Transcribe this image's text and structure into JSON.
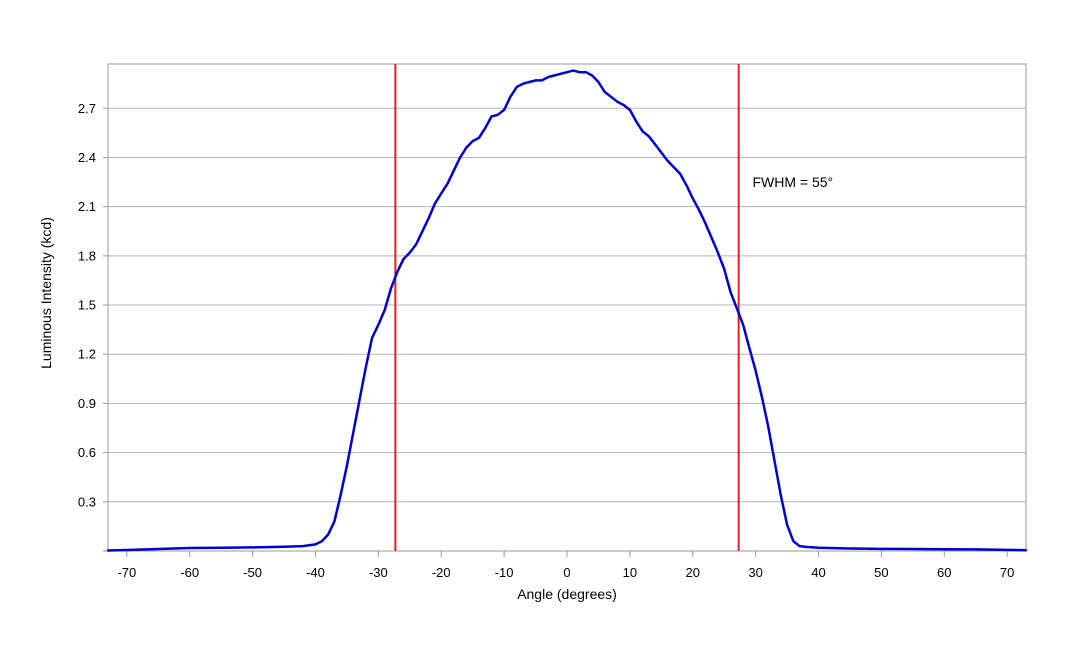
{
  "chart_data": {
    "type": "line",
    "title": "",
    "xlabel": "Angle (degrees)",
    "ylabel": "Luminous Intensity (kcd)",
    "xlim": [
      -73,
      73
    ],
    "ylim": [
      0,
      2.97
    ],
    "x_ticks": [
      -70,
      -60,
      -50,
      -40,
      -30,
      -20,
      -10,
      0,
      10,
      20,
      30,
      40,
      50,
      60,
      70
    ],
    "x_tick_labels": [
      "-70",
      "-60",
      "-50",
      "-40",
      "-30",
      "-20",
      "-10",
      "0",
      "10",
      "20",
      "30",
      "40",
      "50",
      "60",
      "70"
    ],
    "y_ticks": [
      0.3,
      0.6,
      0.9,
      1.2,
      1.5,
      1.8,
      2.1,
      2.4,
      2.7
    ],
    "y_tick_labels": [
      "0.3",
      "0.6",
      "0.9",
      "1.2",
      "1.5",
      "1.8",
      "2.1",
      "2.4",
      "2.7"
    ],
    "grid": "horizontal",
    "series": [
      {
        "color": "#0000cc",
        "x": [
          -73,
          -70,
          -65,
          -60,
          -55,
          -50,
          -45,
          -42,
          -40,
          -39,
          -38,
          -37,
          -36,
          -35,
          -34,
          -33,
          -32,
          -31,
          -30,
          -29,
          -28,
          -27,
          -26,
          -25,
          -24,
          -23,
          -22,
          -21,
          -20,
          -19,
          -18,
          -17,
          -16,
          -15,
          -14,
          -13,
          -12,
          -11,
          -10,
          -9,
          -8,
          -7,
          -6,
          -5,
          -4,
          -3,
          -2,
          -1,
          0,
          1,
          2,
          3,
          4,
          5,
          6,
          7,
          8,
          9,
          10,
          11,
          12,
          13,
          14,
          15,
          16,
          17,
          18,
          19,
          20,
          21,
          22,
          23,
          24,
          25,
          26,
          27,
          28,
          29,
          30,
          31,
          32,
          33,
          34,
          35,
          36,
          37,
          38,
          40,
          45,
          50,
          55,
          60,
          65,
          70,
          73
        ],
        "y": [
          0.003,
          0.006,
          0.012,
          0.018,
          0.02,
          0.022,
          0.026,
          0.03,
          0.04,
          0.06,
          0.1,
          0.18,
          0.34,
          0.52,
          0.72,
          0.92,
          1.12,
          1.3,
          1.38,
          1.47,
          1.6,
          1.7,
          1.78,
          1.82,
          1.87,
          1.95,
          2.03,
          2.12,
          2.18,
          2.24,
          2.32,
          2.4,
          2.46,
          2.5,
          2.52,
          2.58,
          2.65,
          2.66,
          2.69,
          2.77,
          2.83,
          2.85,
          2.86,
          2.87,
          2.87,
          2.89,
          2.9,
          2.91,
          2.92,
          2.93,
          2.92,
          2.92,
          2.9,
          2.86,
          2.8,
          2.77,
          2.74,
          2.72,
          2.69,
          2.62,
          2.56,
          2.53,
          2.48,
          2.43,
          2.38,
          2.34,
          2.3,
          2.23,
          2.15,
          2.08,
          2.0,
          1.91,
          1.82,
          1.72,
          1.58,
          1.48,
          1.38,
          1.24,
          1.1,
          0.94,
          0.76,
          0.55,
          0.34,
          0.16,
          0.06,
          0.03,
          0.025,
          0.02,
          0.015,
          0.013,
          0.012,
          0.011,
          0.01,
          0.007,
          0.005
        ]
      }
    ],
    "vertical_markers": [
      {
        "x": -27.3,
        "color": "#dd2222"
      },
      {
        "x": 27.3,
        "color": "#dd2222"
      }
    ],
    "annotations": [
      {
        "text": "FWHM = 55°",
        "x": 29.5,
        "y": 2.25
      }
    ]
  }
}
